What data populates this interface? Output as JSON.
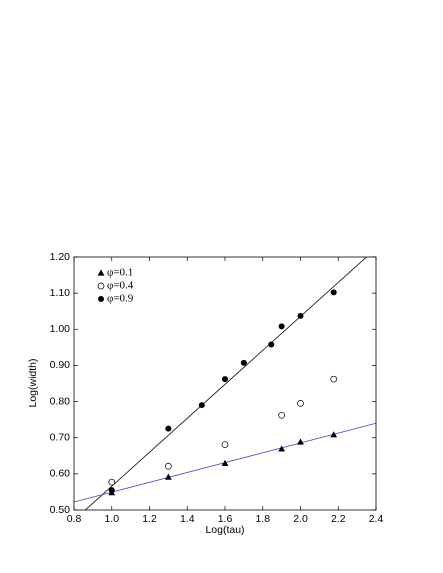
{
  "chart_data": {
    "type": "scatter",
    "xlabel": "Log(tau)",
    "ylabel": "Log(width)",
    "xlim": [
      0.8,
      2.4
    ],
    "ylim": [
      0.5,
      1.2
    ],
    "xticks": [
      0.8,
      {
        "value": 1.0,
        "label": "1.0"
      },
      1.2,
      1.4,
      1.6,
      1.8,
      {
        "value": 2.0,
        "label": "2.0"
      },
      2.2,
      2.4
    ],
    "yticks": [
      {
        "value": 0.5,
        "label": "0.50"
      },
      {
        "value": 0.6,
        "label": "0.60"
      },
      {
        "value": 0.7,
        "label": "0.70"
      },
      {
        "value": 0.8,
        "label": "0.80"
      },
      {
        "value": 0.9,
        "label": "0.90"
      },
      {
        "value": 1.0,
        "label": "1.00"
      },
      {
        "value": 1.1,
        "label": "1.10"
      },
      {
        "value": 1.2,
        "label": "1.20"
      }
    ],
    "legend": "upper left",
    "series": [
      {
        "name": "φ=0.1",
        "color": "#000000",
        "marker": "triangle",
        "x": [
          1.0,
          1.3,
          1.6,
          1.9,
          2.0,
          2.176
        ],
        "values": [
          0.548,
          0.591,
          0.629,
          0.669,
          0.688,
          0.708
        ]
      },
      {
        "name": "φ=0.4",
        "color": "#000000",
        "marker": "open-circle",
        "x": [
          1.0,
          1.3,
          1.6,
          1.9,
          2.0,
          2.176
        ],
        "values": [
          0.577,
          0.621,
          0.681,
          0.762,
          0.795,
          0.862
        ]
      },
      {
        "name": "φ=0.9",
        "color": "#000000",
        "marker": "circle",
        "x": [
          1.0,
          1.3,
          1.477,
          1.6,
          1.7,
          1.845,
          1.9,
          2.0,
          2.176
        ],
        "values": [
          0.555,
          0.725,
          0.79,
          0.862,
          0.907,
          0.958,
          1.008,
          1.037,
          1.102
        ]
      }
    ],
    "fit_lines": [
      {
        "color": "#000000",
        "x": [
          0.86,
          2.35
        ],
        "values": [
          0.5,
          1.2
        ]
      },
      {
        "color": "#4444cc",
        "x": [
          0.8,
          2.4
        ],
        "values": [
          0.522,
          0.74
        ]
      }
    ]
  }
}
